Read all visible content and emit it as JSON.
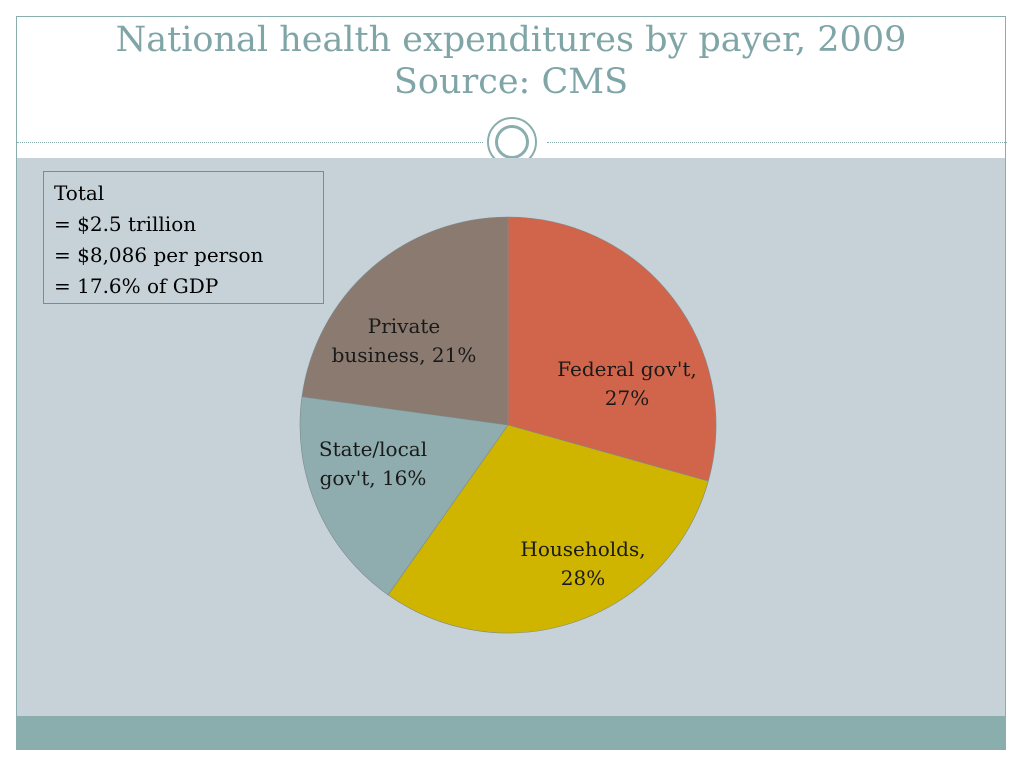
{
  "slide": {
    "title_line1": "National health expenditures by payer, 2009",
    "title_line2": "Source: CMS"
  },
  "totals_box": {
    "lines": [
      "Total",
      "= $2.5 trillion",
      "= $8,086 per person",
      "= 17.6% of GDP"
    ]
  },
  "chart_data": {
    "type": "pie",
    "start_angle_deg": 0,
    "direction": "clockwise",
    "slices": [
      {
        "label_lines": [
          "Federal gov't,",
          "27%"
        ],
        "value": 27,
        "color": "#d1654b"
      },
      {
        "label_lines": [
          "Households,",
          "28%"
        ],
        "value": 28,
        "color": "#cfb500"
      },
      {
        "label_lines": [
          "State/local",
          "gov't, 16%"
        ],
        "value": 16,
        "color": "#8fadae"
      },
      {
        "label_lines": [
          "Private",
          "business, 21%"
        ],
        "value": 21,
        "color": "#8b7a70"
      }
    ]
  },
  "theme": {
    "accent": "#8aadad",
    "content_bg": "#c6d1d8",
    "totals_border": "#d46a4f"
  }
}
